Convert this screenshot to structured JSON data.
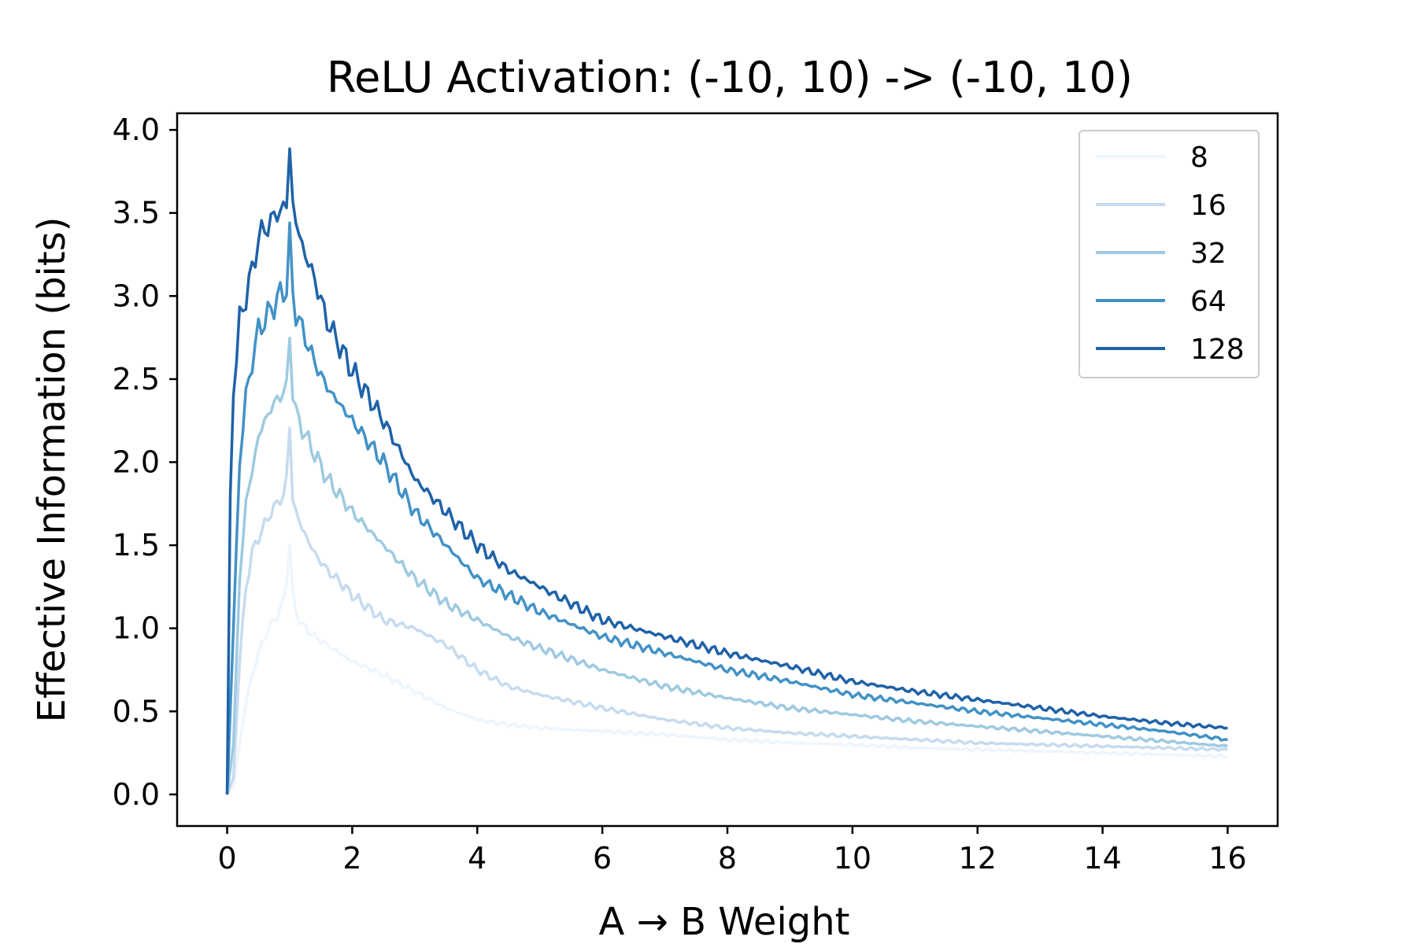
{
  "chart_data": {
    "type": "line",
    "title": "ReLU Activation: (-10, 10) -> (-10, 10)",
    "xlabel": "A → B Weight",
    "ylabel": "Effective Information (bits)",
    "xlim": [
      -0.8,
      16.8
    ],
    "ylim": [
      -0.19,
      4.1
    ],
    "xticks": [
      0,
      2,
      4,
      6,
      8,
      10,
      12,
      14,
      16
    ],
    "xtick_labels": [
      "0",
      "2",
      "4",
      "6",
      "8",
      "10",
      "12",
      "14",
      "16"
    ],
    "yticks": [
      0.0,
      0.5,
      1.0,
      1.5,
      2.0,
      2.5,
      3.0,
      3.5,
      4.0
    ],
    "ytick_labels": [
      "0.0",
      "0.5",
      "1.0",
      "1.5",
      "2.0",
      "2.5",
      "3.0",
      "3.5",
      "4.0"
    ],
    "grid": false,
    "legend": "top-right",
    "series": [
      {
        "name": "8",
        "color": "#eef5fc",
        "x": [
          0,
          0.1,
          0.2,
          0.3,
          0.4,
          0.5,
          0.6,
          0.7,
          0.8,
          0.9,
          0.95,
          1.0,
          1.05,
          1.1,
          1.2,
          1.4,
          1.6,
          1.8,
          2.0,
          2.5,
          3.0,
          3.5,
          4.0,
          4.5,
          5.0,
          6.0,
          7.0,
          8.0,
          9.0,
          10.0,
          11.0,
          12.0,
          13.0,
          14.0,
          15.0,
          16.0
        ],
        "values": [
          0,
          0.05,
          0.3,
          0.55,
          0.72,
          0.85,
          0.95,
          1.02,
          1.08,
          1.15,
          1.3,
          1.52,
          1.2,
          1.1,
          1.02,
          0.95,
          0.9,
          0.85,
          0.8,
          0.72,
          0.62,
          0.52,
          0.45,
          0.42,
          0.4,
          0.38,
          0.36,
          0.33,
          0.31,
          0.3,
          0.28,
          0.27,
          0.26,
          0.25,
          0.24,
          0.23
        ]
      },
      {
        "name": "16",
        "color": "#c6dbef",
        "x": [
          0,
          0.1,
          0.2,
          0.3,
          0.4,
          0.5,
          0.6,
          0.7,
          0.8,
          0.9,
          0.95,
          1.0,
          1.05,
          1.1,
          1.2,
          1.4,
          1.6,
          1.8,
          2.0,
          2.5,
          3.0,
          3.5,
          4.0,
          4.5,
          5.0,
          6.0,
          7.0,
          8.0,
          9.0,
          10.0,
          11.0,
          12.0,
          13.0,
          14.0,
          15.0,
          16.0
        ],
        "values": [
          0,
          0.1,
          0.8,
          1.25,
          1.45,
          1.55,
          1.62,
          1.7,
          1.75,
          1.8,
          1.9,
          2.22,
          1.78,
          1.7,
          1.6,
          1.45,
          1.35,
          1.28,
          1.2,
          1.05,
          1.0,
          0.9,
          0.75,
          0.65,
          0.6,
          0.52,
          0.45,
          0.4,
          0.37,
          0.35,
          0.33,
          0.31,
          0.3,
          0.29,
          0.28,
          0.27
        ]
      },
      {
        "name": "32",
        "color": "#9ecae1",
        "x": [
          0,
          0.1,
          0.2,
          0.3,
          0.4,
          0.5,
          0.6,
          0.7,
          0.8,
          0.9,
          0.95,
          1.0,
          1.05,
          1.1,
          1.2,
          1.4,
          1.6,
          1.8,
          2.0,
          2.5,
          3.0,
          3.5,
          4.0,
          4.5,
          5.0,
          6.0,
          7.0,
          8.0,
          9.0,
          10.0,
          11.0,
          12.0,
          13.0,
          14.0,
          15.0,
          16.0
        ],
        "values": [
          0,
          0.3,
          1.3,
          1.75,
          1.95,
          2.15,
          2.25,
          2.32,
          2.38,
          2.42,
          2.45,
          2.77,
          2.42,
          2.3,
          2.2,
          2.05,
          1.9,
          1.8,
          1.7,
          1.5,
          1.3,
          1.15,
          1.05,
          0.95,
          0.88,
          0.75,
          0.65,
          0.58,
          0.52,
          0.48,
          0.44,
          0.41,
          0.38,
          0.35,
          0.32,
          0.29
        ]
      },
      {
        "name": "64",
        "color": "#4292c6",
        "x": [
          0,
          0.1,
          0.2,
          0.3,
          0.4,
          0.5,
          0.6,
          0.7,
          0.8,
          0.9,
          0.95,
          1.0,
          1.05,
          1.1,
          1.2,
          1.4,
          1.6,
          1.8,
          2.0,
          2.5,
          3.0,
          3.5,
          4.0,
          4.5,
          5.0,
          6.0,
          7.0,
          8.0,
          9.0,
          10.0,
          11.0,
          12.0,
          13.0,
          14.0,
          15.0,
          16.0
        ],
        "values": [
          0,
          1.0,
          2.0,
          2.4,
          2.6,
          2.8,
          2.85,
          2.92,
          2.98,
          3.03,
          3.05,
          3.35,
          3.02,
          2.9,
          2.8,
          2.6,
          2.45,
          2.35,
          2.25,
          2.0,
          1.7,
          1.5,
          1.3,
          1.2,
          1.1,
          0.95,
          0.85,
          0.75,
          0.68,
          0.6,
          0.55,
          0.5,
          0.46,
          0.42,
          0.38,
          0.33
        ]
      },
      {
        "name": "128",
        "color": "#1f62a8",
        "x": [
          0,
          0.05,
          0.1,
          0.2,
          0.3,
          0.4,
          0.5,
          0.6,
          0.7,
          0.8,
          0.9,
          0.95,
          1.0,
          1.05,
          1.1,
          1.2,
          1.4,
          1.6,
          1.8,
          2.0,
          2.5,
          3.0,
          3.5,
          4.0,
          4.5,
          5.0,
          6.0,
          7.0,
          8.0,
          9.0,
          10.0,
          11.0,
          12.0,
          13.0,
          14.0,
          15.0,
          16.0
        ],
        "values": [
          0,
          1.8,
          2.4,
          2.85,
          3.0,
          3.15,
          3.35,
          3.4,
          3.45,
          3.5,
          3.53,
          3.55,
          3.9,
          3.55,
          3.45,
          3.3,
          3.1,
          2.85,
          2.7,
          2.55,
          2.25,
          1.9,
          1.7,
          1.5,
          1.35,
          1.25,
          1.05,
          0.95,
          0.85,
          0.77,
          0.68,
          0.62,
          0.57,
          0.52,
          0.47,
          0.43,
          0.4
        ]
      }
    ]
  }
}
